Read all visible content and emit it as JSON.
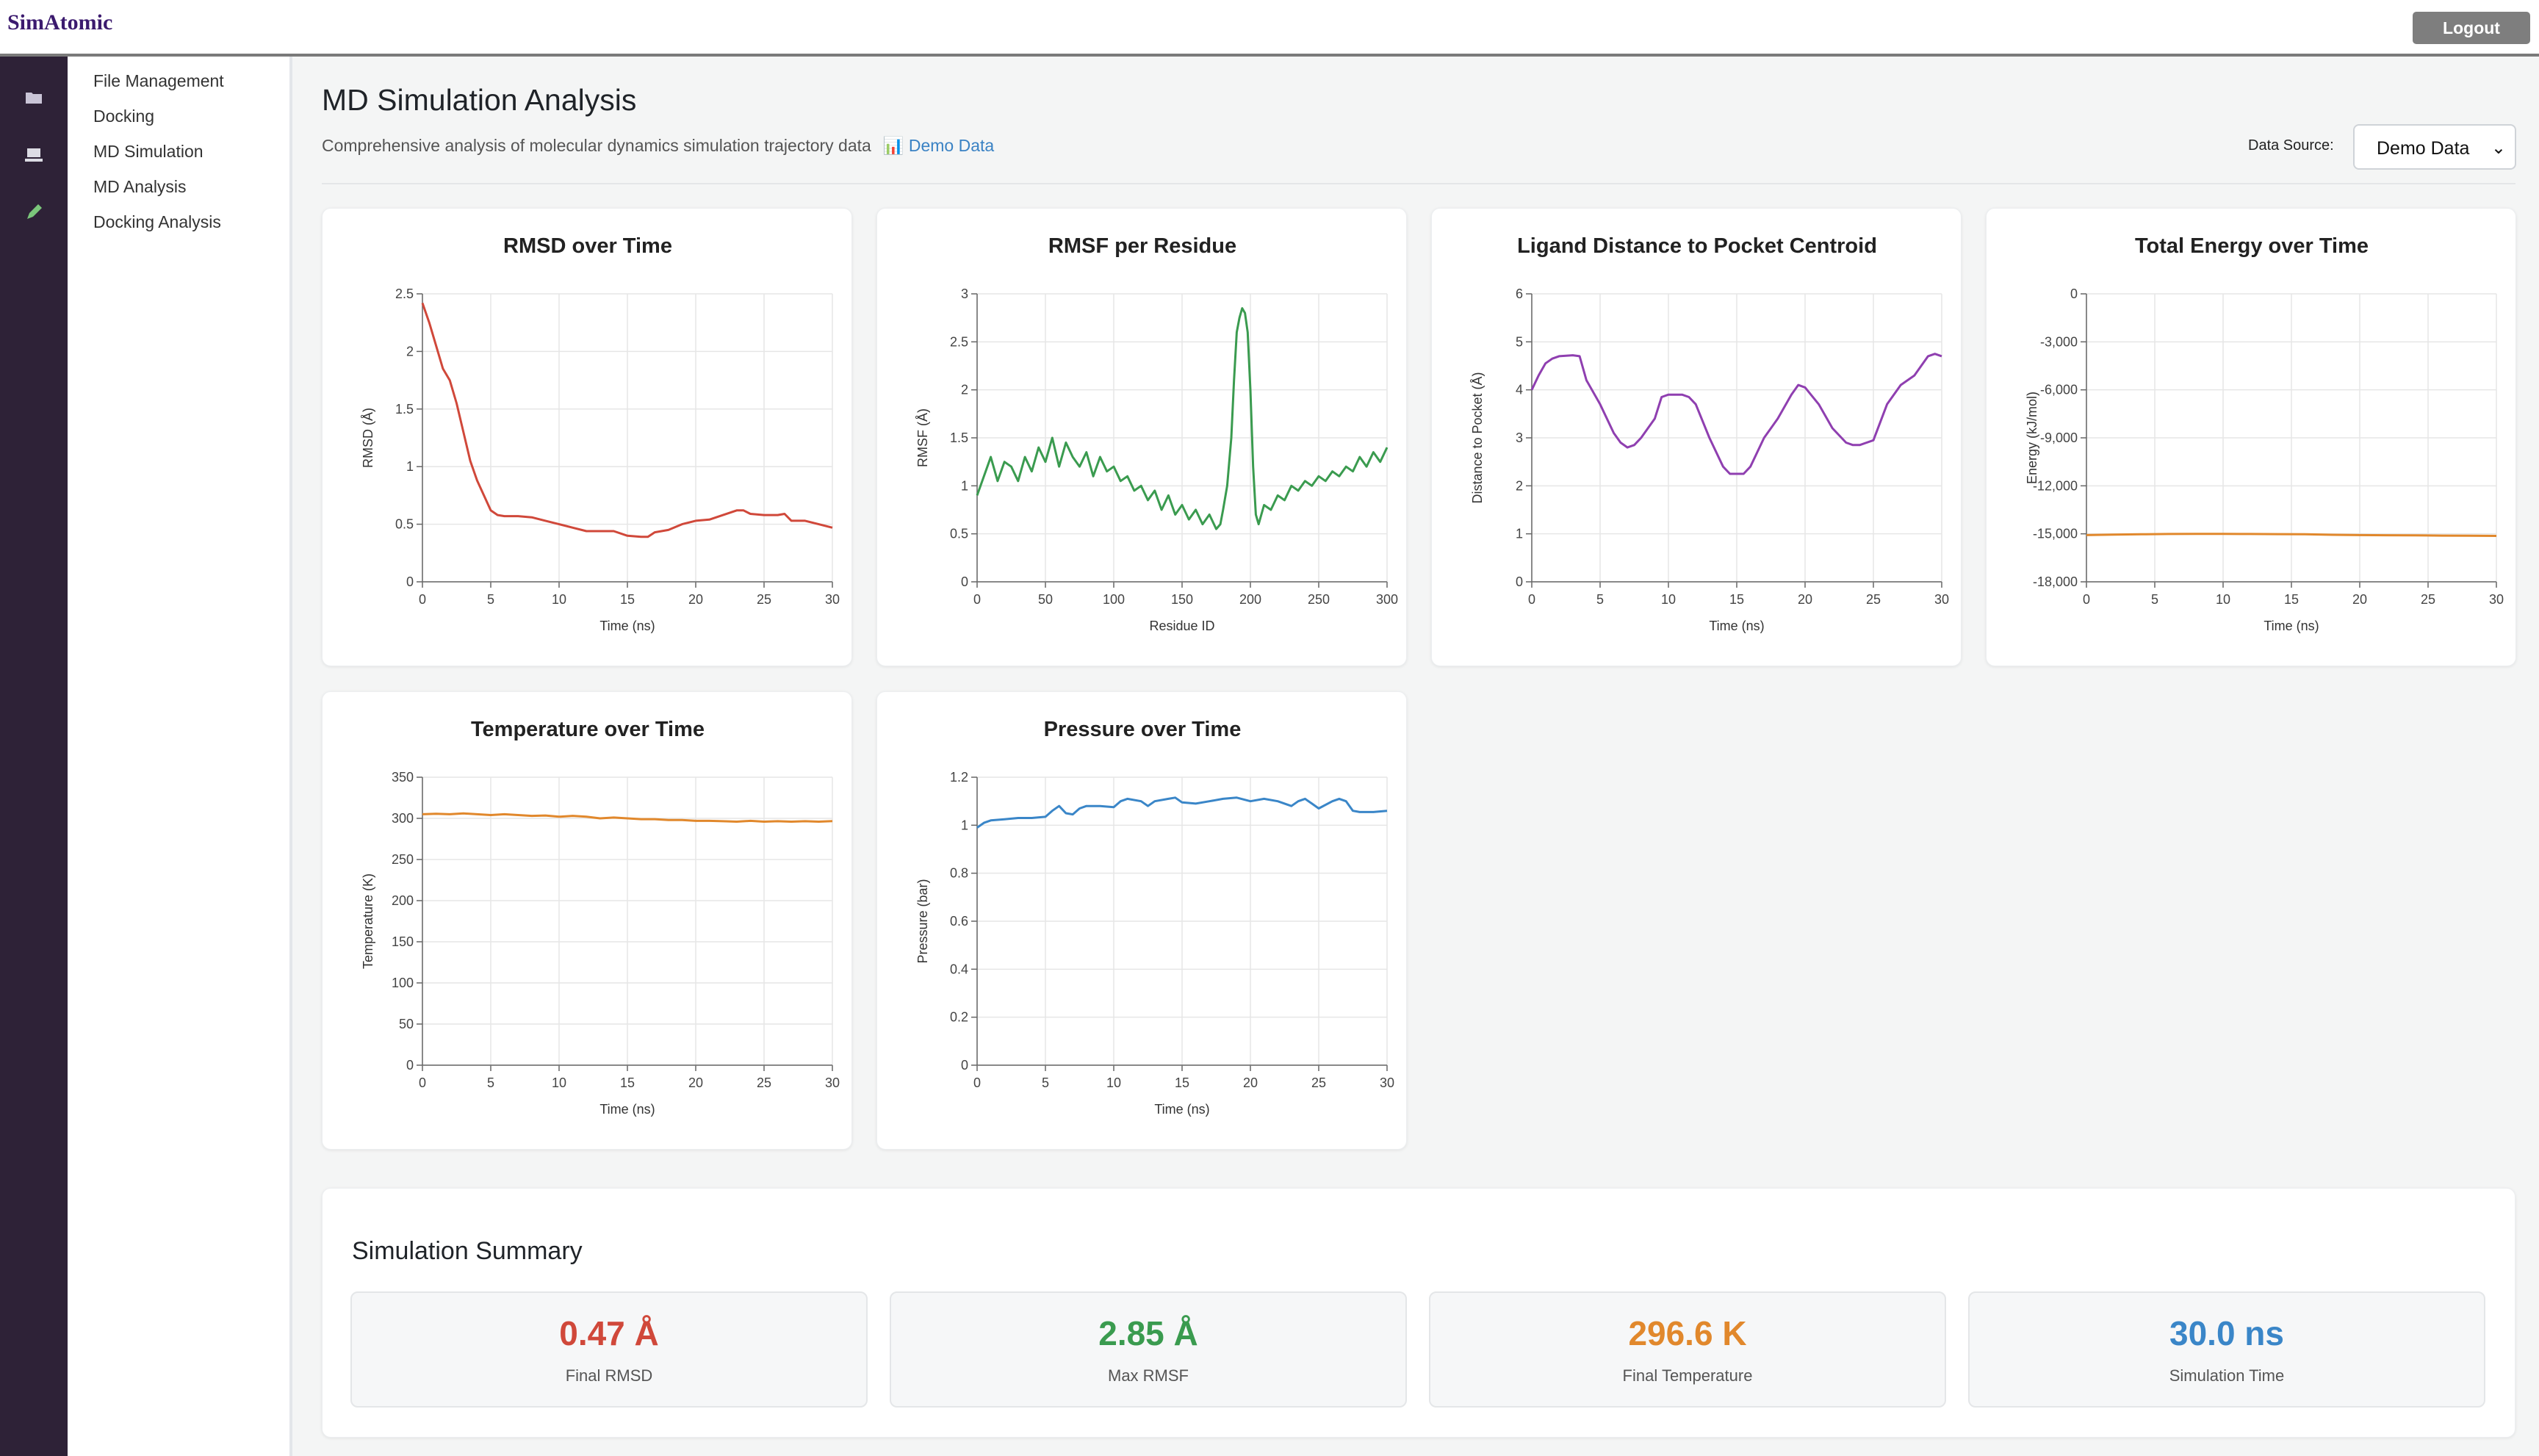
{
  "app": {
    "brand": "SimAtomic",
    "logout_label": "Logout"
  },
  "rail": {
    "icons": [
      "folder-icon",
      "laptop-icon",
      "pencil-icon"
    ]
  },
  "sidebar": {
    "items": [
      {
        "label": "File Management"
      },
      {
        "label": "Docking"
      },
      {
        "label": "MD Simulation"
      },
      {
        "label": "MD Analysis"
      },
      {
        "label": "Docking Analysis"
      }
    ]
  },
  "header": {
    "title": "MD Simulation Analysis",
    "subtitle": "Comprehensive analysis of molecular dynamics simulation trajectory data",
    "demo_badge": "📊 Demo Data",
    "data_source_label": "Data Source:",
    "data_source_value": "Demo Data"
  },
  "colors": {
    "red": "#d0483a",
    "green": "#3a9b4f",
    "purple": "#8f3fb0",
    "orange": "#e1882c",
    "blue": "#3a86c8"
  },
  "chart_data": [
    {
      "type": "line",
      "title": "RMSD over Time",
      "xlabel": "Time (ns)",
      "ylabel": "RMSD (Å)",
      "xlim": [
        0,
        30
      ],
      "ylim": [
        0,
        2.5
      ],
      "xticks": [
        "0",
        "5",
        "10",
        "15",
        "20",
        "25",
        "30"
      ],
      "yticks": [
        "0",
        "0.5",
        "1",
        "1.5",
        "2",
        "2.5"
      ],
      "series": [
        {
          "color": "#d0483a",
          "x": [
            0,
            0.5,
            1,
            1.5,
            2,
            2.5,
            3,
            3.5,
            4,
            4.5,
            5,
            5.5,
            6,
            7,
            8,
            9,
            10,
            11,
            12,
            13,
            14,
            15,
            16,
            16.5,
            17,
            18,
            19,
            20,
            21,
            22,
            22.5,
            23,
            23.5,
            24,
            25,
            26,
            26.5,
            27,
            28,
            29,
            30
          ],
          "y": [
            2.42,
            2.25,
            2.05,
            1.85,
            1.75,
            1.55,
            1.3,
            1.05,
            0.88,
            0.75,
            0.62,
            0.58,
            0.57,
            0.57,
            0.56,
            0.53,
            0.5,
            0.47,
            0.44,
            0.44,
            0.44,
            0.4,
            0.39,
            0.39,
            0.43,
            0.45,
            0.5,
            0.53,
            0.54,
            0.58,
            0.6,
            0.62,
            0.62,
            0.59,
            0.58,
            0.58,
            0.59,
            0.53,
            0.53,
            0.5,
            0.47
          ]
        }
      ]
    },
    {
      "type": "line",
      "title": "RMSF per Residue",
      "xlabel": "Residue ID",
      "ylabel": "RMSF (Å)",
      "xlim": [
        0,
        300
      ],
      "ylim": [
        0,
        3
      ],
      "xticks": [
        "0",
        "50",
        "100",
        "150",
        "200",
        "250",
        "300"
      ],
      "yticks": [
        "0",
        "0.5",
        "1",
        "1.5",
        "2",
        "2.5",
        "3"
      ],
      "series": [
        {
          "color": "#3a9b4f",
          "x": [
            0,
            5,
            10,
            15,
            20,
            25,
            30,
            35,
            40,
            45,
            50,
            55,
            60,
            65,
            70,
            75,
            80,
            85,
            90,
            95,
            100,
            105,
            110,
            115,
            120,
            125,
            130,
            135,
            140,
            145,
            150,
            155,
            160,
            165,
            170,
            175,
            178,
            180,
            183,
            186,
            188,
            190,
            192,
            194,
            196,
            198,
            200,
            202,
            204,
            206,
            208,
            210,
            215,
            220,
            225,
            230,
            235,
            240,
            245,
            250,
            255,
            260,
            265,
            270,
            275,
            280,
            285,
            290,
            295,
            300
          ],
          "y": [
            0.9,
            1.1,
            1.3,
            1.05,
            1.25,
            1.2,
            1.05,
            1.3,
            1.15,
            1.4,
            1.25,
            1.5,
            1.2,
            1.45,
            1.3,
            1.2,
            1.35,
            1.1,
            1.3,
            1.15,
            1.2,
            1.05,
            1.1,
            0.95,
            1.0,
            0.85,
            0.95,
            0.75,
            0.9,
            0.7,
            0.8,
            0.65,
            0.75,
            0.6,
            0.7,
            0.55,
            0.6,
            0.75,
            1.0,
            1.5,
            2.1,
            2.6,
            2.75,
            2.85,
            2.8,
            2.6,
            2.0,
            1.2,
            0.7,
            0.6,
            0.7,
            0.8,
            0.75,
            0.9,
            0.85,
            1.0,
            0.95,
            1.05,
            1.0,
            1.1,
            1.05,
            1.15,
            1.1,
            1.2,
            1.15,
            1.3,
            1.2,
            1.35,
            1.25,
            1.4
          ]
        }
      ]
    },
    {
      "type": "line",
      "title": "Ligand Distance to Pocket Centroid",
      "xlabel": "Time (ns)",
      "ylabel": "Distance to Pocket (Å)",
      "xlim": [
        0,
        30
      ],
      "ylim": [
        0,
        6
      ],
      "xticks": [
        "0",
        "5",
        "10",
        "15",
        "20",
        "25",
        "30"
      ],
      "yticks": [
        "0",
        "1",
        "2",
        "3",
        "4",
        "5",
        "6"
      ],
      "series": [
        {
          "color": "#8f3fb0",
          "x": [
            0,
            0.5,
            1,
            1.5,
            2,
            3,
            3.5,
            4,
            5,
            6,
            6.5,
            7,
            7.5,
            8,
            9,
            9.5,
            10,
            11,
            11.5,
            12,
            13,
            14,
            14.5,
            15,
            15.5,
            16,
            17,
            18,
            19,
            19.5,
            20,
            21,
            22,
            23,
            23.5,
            24,
            25,
            26,
            27,
            28,
            29,
            29.5,
            30
          ],
          "y": [
            4.0,
            4.3,
            4.55,
            4.65,
            4.7,
            4.72,
            4.7,
            4.2,
            3.7,
            3.1,
            2.9,
            2.8,
            2.85,
            3.0,
            3.4,
            3.85,
            3.9,
            3.9,
            3.85,
            3.7,
            3.0,
            2.4,
            2.25,
            2.25,
            2.25,
            2.4,
            3.0,
            3.4,
            3.9,
            4.1,
            4.05,
            3.7,
            3.2,
            2.9,
            2.85,
            2.85,
            2.95,
            3.7,
            4.1,
            4.3,
            4.7,
            4.75,
            4.7
          ]
        }
      ]
    },
    {
      "type": "line",
      "title": "Total Energy over Time",
      "xlabel": "Time (ns)",
      "ylabel": "Energy (kJ/mol)",
      "xlim": [
        0,
        30
      ],
      "ylim": [
        -18000,
        0
      ],
      "xticks": [
        "0",
        "5",
        "10",
        "15",
        "20",
        "25",
        "30"
      ],
      "yticks": [
        "-18,000",
        "-15,000",
        "-12,000",
        "-9,000",
        "-6,000",
        "-3,000",
        "0"
      ],
      "series": [
        {
          "color": "#e1882c",
          "x": [
            0,
            2,
            4,
            6,
            8,
            10,
            12,
            14,
            16,
            18,
            20,
            22,
            24,
            26,
            28,
            30
          ],
          "y": [
            -15080,
            -15050,
            -15030,
            -15010,
            -15000,
            -15000,
            -15010,
            -15020,
            -15030,
            -15060,
            -15080,
            -15090,
            -15100,
            -15110,
            -15120,
            -15130
          ]
        }
      ]
    },
    {
      "type": "line",
      "title": "Temperature over Time",
      "xlabel": "Time (ns)",
      "ylabel": "Temperature (K)",
      "xlim": [
        0,
        30
      ],
      "ylim": [
        0,
        350
      ],
      "xticks": [
        "0",
        "5",
        "10",
        "15",
        "20",
        "25",
        "30"
      ],
      "yticks": [
        "0",
        "50",
        "100",
        "150",
        "200",
        "250",
        "300",
        "350"
      ],
      "series": [
        {
          "color": "#e1882c",
          "x": [
            0,
            1,
            2,
            3,
            4,
            5,
            6,
            7,
            8,
            9,
            10,
            11,
            12,
            13,
            14,
            15,
            16,
            17,
            18,
            19,
            20,
            21,
            22,
            23,
            24,
            25,
            26,
            27,
            28,
            29,
            30
          ],
          "y": [
            305,
            305.5,
            305,
            306,
            305,
            304,
            305,
            304,
            303,
            303.5,
            302,
            303,
            302,
            300,
            301,
            300,
            299,
            299,
            298,
            298,
            297,
            297,
            296.5,
            296,
            297,
            296,
            296.5,
            296,
            296.5,
            296,
            296.6
          ]
        }
      ]
    },
    {
      "type": "line",
      "title": "Pressure over Time",
      "xlabel": "Time (ns)",
      "ylabel": "Pressure (bar)",
      "xlim": [
        0,
        30
      ],
      "ylim": [
        0,
        1.2
      ],
      "xticks": [
        "0",
        "5",
        "10",
        "15",
        "20",
        "25",
        "30"
      ],
      "yticks": [
        "0",
        "0.2",
        "0.4",
        "0.6",
        "0.8",
        "1",
        "1.2"
      ],
      "series": [
        {
          "color": "#3a86c8",
          "x": [
            0,
            0.5,
            1,
            2,
            3,
            4,
            5,
            5.5,
            6,
            6.5,
            7,
            7.5,
            8,
            9,
            10,
            10.5,
            11,
            12,
            12.5,
            13,
            14,
            14.5,
            15,
            16,
            17,
            18,
            19,
            20,
            21,
            22,
            23,
            23.5,
            24,
            24.5,
            25,
            26,
            26.5,
            27,
            27.5,
            28,
            29,
            30
          ],
          "y": [
            0.99,
            1.01,
            1.02,
            1.025,
            1.03,
            1.03,
            1.035,
            1.06,
            1.08,
            1.05,
            1.045,
            1.07,
            1.08,
            1.08,
            1.075,
            1.1,
            1.11,
            1.1,
            1.08,
            1.1,
            1.11,
            1.115,
            1.095,
            1.09,
            1.1,
            1.11,
            1.115,
            1.1,
            1.11,
            1.1,
            1.08,
            1.1,
            1.11,
            1.09,
            1.07,
            1.1,
            1.11,
            1.1,
            1.06,
            1.055,
            1.055,
            1.06
          ]
        }
      ]
    }
  ],
  "summary": {
    "title": "Simulation Summary",
    "stats": [
      {
        "value": "0.47 Å",
        "label": "Final RMSD",
        "color": "#d0483a"
      },
      {
        "value": "2.85 Å",
        "label": "Max RMSF",
        "color": "#3a9b4f"
      },
      {
        "value": "296.6 K",
        "label": "Final Temperature",
        "color": "#e1882c"
      },
      {
        "value": "30.0 ns",
        "label": "Simulation Time",
        "color": "#3a86c8"
      }
    ]
  }
}
